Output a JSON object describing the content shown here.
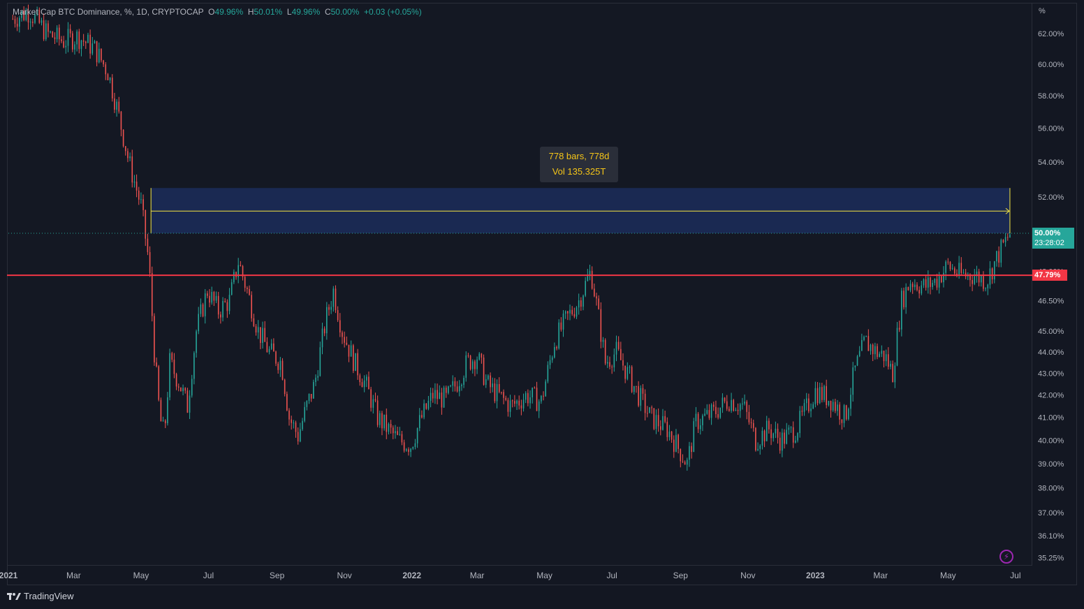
{
  "legend": {
    "symbol": "Market Cap BTC Dominance, %, 1D, CRYPTOCAP",
    "open_label": "O",
    "open": "49.96%",
    "high_label": "H",
    "high": "50.01%",
    "low_label": "L",
    "low": "49.96%",
    "close_label": "C",
    "close": "50.00%",
    "change": "+0.03 (+0.05%)"
  },
  "axis_unit": "%",
  "measure_tooltip": {
    "line1": "778 bars, 778d",
    "line2": "Vol 135.325T"
  },
  "last_price_badge": {
    "price": "50.00%",
    "countdown": "23:28:02",
    "color": "#26a69a"
  },
  "level_badge": {
    "price": "47.79%",
    "color": "#f23645"
  },
  "brand": {
    "name": "TradingView"
  },
  "colors": {
    "up": "#26a69a",
    "down": "#ef5350",
    "level": "#f23645",
    "measure": "#f5e642",
    "measure_fill": "#1a2a55"
  },
  "chart_data": {
    "type": "candlestick",
    "title": "Market Cap BTC Dominance, %, 1D, CRYPTOCAP",
    "y_scale": "log",
    "ylim": [
      35.0,
      64.0
    ],
    "y_ticks": [
      "62.00%",
      "60.00%",
      "58.00%",
      "56.00%",
      "54.00%",
      "52.00%",
      "50.00%",
      "48.00%",
      "46.50%",
      "45.00%",
      "44.00%",
      "43.00%",
      "42.00%",
      "41.00%",
      "40.00%",
      "39.00%",
      "38.00%",
      "37.00%",
      "36.10%",
      "35.25%"
    ],
    "x_ticks": [
      "2021",
      "Mar",
      "May",
      "Jul",
      "Sep",
      "Nov",
      "2022",
      "Mar",
      "May",
      "Jul",
      "Sep",
      "Nov",
      "2023",
      "Mar",
      "May",
      "Jul"
    ],
    "x_range": [
      "2021-01-01",
      "2023-07-15"
    ],
    "horizontal_line": 47.79,
    "measure_range": {
      "from": "2021-05-10",
      "to": "2023-06-26",
      "low": 50.0,
      "high": 52.5
    },
    "last_close": 50.0,
    "series": [
      {
        "date": "2021-01-05",
        "value": 63.0
      },
      {
        "date": "2021-01-20",
        "value": 63.5
      },
      {
        "date": "2021-02-05",
        "value": 62.0
      },
      {
        "date": "2021-02-20",
        "value": 61.5
      },
      {
        "date": "2021-03-05",
        "value": 61.8
      },
      {
        "date": "2021-03-20",
        "value": 61.0
      },
      {
        "date": "2021-04-01",
        "value": 59.5
      },
      {
        "date": "2021-04-10",
        "value": 57.0
      },
      {
        "date": "2021-04-20",
        "value": 54.0
      },
      {
        "date": "2021-05-01",
        "value": 51.5
      },
      {
        "date": "2021-05-08",
        "value": 48.5
      },
      {
        "date": "2021-05-13",
        "value": 44.0
      },
      {
        "date": "2021-05-18",
        "value": 41.0
      },
      {
        "date": "2021-05-22",
        "value": 40.2
      },
      {
        "date": "2021-05-27",
        "value": 43.5
      },
      {
        "date": "2021-06-05",
        "value": 42.5
      },
      {
        "date": "2021-06-12",
        "value": 41.5
      },
      {
        "date": "2021-06-20",
        "value": 45.0
      },
      {
        "date": "2021-06-30",
        "value": 47.0
      },
      {
        "date": "2021-07-10",
        "value": 46.0
      },
      {
        "date": "2021-07-20",
        "value": 46.5
      },
      {
        "date": "2021-07-28",
        "value": 48.5
      },
      {
        "date": "2021-08-05",
        "value": 47.0
      },
      {
        "date": "2021-08-15",
        "value": 45.0
      },
      {
        "date": "2021-08-25",
        "value": 44.0
      },
      {
        "date": "2021-09-05",
        "value": 43.5
      },
      {
        "date": "2021-09-12",
        "value": 41.0
      },
      {
        "date": "2021-09-20",
        "value": 40.2
      },
      {
        "date": "2021-09-28",
        "value": 41.5
      },
      {
        "date": "2021-10-05",
        "value": 42.5
      },
      {
        "date": "2021-10-15",
        "value": 45.5
      },
      {
        "date": "2021-10-22",
        "value": 47.0
      },
      {
        "date": "2021-10-30",
        "value": 45.0
      },
      {
        "date": "2021-11-10",
        "value": 43.5
      },
      {
        "date": "2021-11-20",
        "value": 42.5
      },
      {
        "date": "2021-12-01",
        "value": 41.0
      },
      {
        "date": "2021-12-10",
        "value": 40.5
      },
      {
        "date": "2021-12-20",
        "value": 40.0
      },
      {
        "date": "2021-12-31",
        "value": 39.8
      },
      {
        "date": "2022-01-10",
        "value": 41.0
      },
      {
        "date": "2022-01-20",
        "value": 42.0
      },
      {
        "date": "2022-02-01",
        "value": 41.8
      },
      {
        "date": "2022-02-10",
        "value": 42.5
      },
      {
        "date": "2022-02-20",
        "value": 43.5
      },
      {
        "date": "2022-03-01",
        "value": 43.8
      },
      {
        "date": "2022-03-10",
        "value": 42.5
      },
      {
        "date": "2022-03-20",
        "value": 42.0
      },
      {
        "date": "2022-04-01",
        "value": 41.5
      },
      {
        "date": "2022-04-15",
        "value": 42.0
      },
      {
        "date": "2022-04-28",
        "value": 41.7
      },
      {
        "date": "2022-05-10",
        "value": 44.5
      },
      {
        "date": "2022-05-20",
        "value": 45.5
      },
      {
        "date": "2022-06-01",
        "value": 46.5
      },
      {
        "date": "2022-06-12",
        "value": 48.0
      },
      {
        "date": "2022-06-18",
        "value": 46.0
      },
      {
        "date": "2022-06-25",
        "value": 43.5
      },
      {
        "date": "2022-07-05",
        "value": 44.0
      },
      {
        "date": "2022-07-15",
        "value": 43.0
      },
      {
        "date": "2022-07-25",
        "value": 42.0
      },
      {
        "date": "2022-08-05",
        "value": 41.0
      },
      {
        "date": "2022-08-20",
        "value": 40.5
      },
      {
        "date": "2022-09-01",
        "value": 39.5
      },
      {
        "date": "2022-09-07",
        "value": 39.0
      },
      {
        "date": "2022-09-15",
        "value": 40.8
      },
      {
        "date": "2022-10-01",
        "value": 41.2
      },
      {
        "date": "2022-10-15",
        "value": 41.8
      },
      {
        "date": "2022-10-28",
        "value": 41.5
      },
      {
        "date": "2022-11-08",
        "value": 40.0
      },
      {
        "date": "2022-11-20",
        "value": 40.5
      },
      {
        "date": "2022-12-01",
        "value": 40.0
      },
      {
        "date": "2022-12-15",
        "value": 40.5
      },
      {
        "date": "2023-01-01",
        "value": 42.2
      },
      {
        "date": "2023-01-15",
        "value": 41.8
      },
      {
        "date": "2023-01-28",
        "value": 41.0
      },
      {
        "date": "2023-02-05",
        "value": 43.0
      },
      {
        "date": "2023-02-15",
        "value": 44.5
      },
      {
        "date": "2023-02-25",
        "value": 44.0
      },
      {
        "date": "2023-03-05",
        "value": 43.8
      },
      {
        "date": "2023-03-12",
        "value": 43.0
      },
      {
        "date": "2023-03-20",
        "value": 46.5
      },
      {
        "date": "2023-03-28",
        "value": 47.5
      },
      {
        "date": "2023-04-10",
        "value": 47.2
      },
      {
        "date": "2023-04-20",
        "value": 47.5
      },
      {
        "date": "2023-05-01",
        "value": 48.3
      },
      {
        "date": "2023-05-12",
        "value": 47.8
      },
      {
        "date": "2023-05-25",
        "value": 47.8
      },
      {
        "date": "2023-06-05",
        "value": 47.5
      },
      {
        "date": "2023-06-15",
        "value": 48.8
      },
      {
        "date": "2023-06-26",
        "value": 50.0
      }
    ]
  }
}
